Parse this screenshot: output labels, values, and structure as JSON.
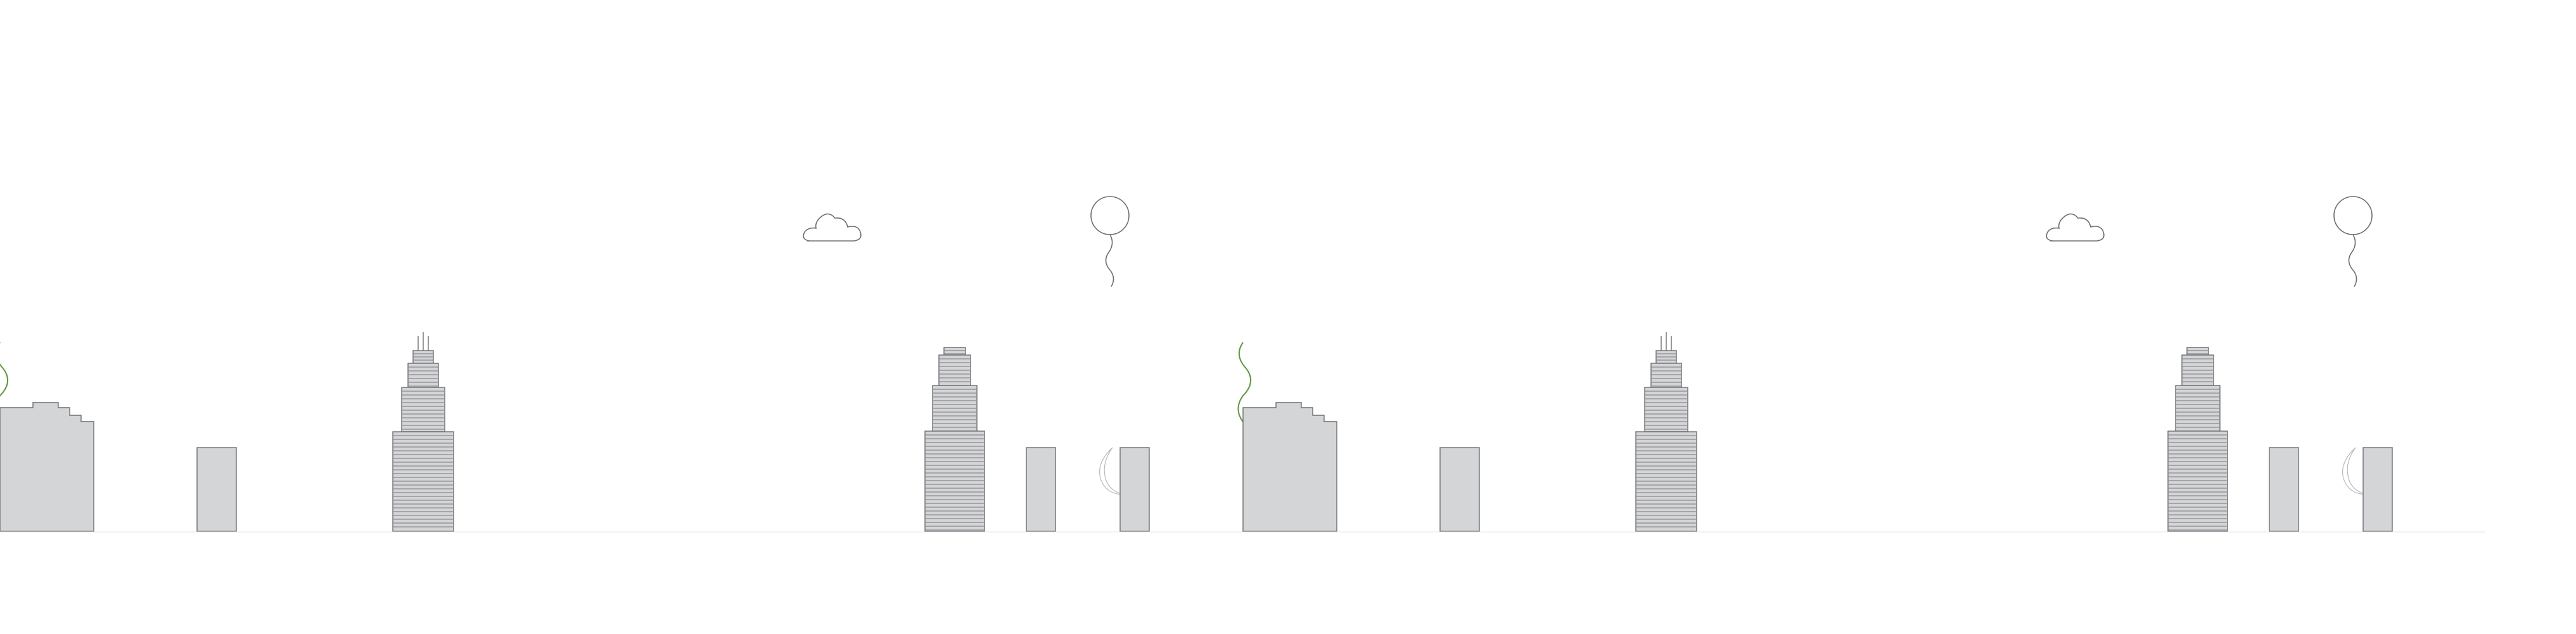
{
  "scene": {
    "name": "city-skyline-illustration",
    "repeat_count": 2,
    "elements": [
      "smoke-puff",
      "factory-building",
      "small-building",
      "antenna-skyscraper",
      "cloud",
      "stepped-skyscraper",
      "narrow-building",
      "balloon",
      "crescent-moon",
      "tall-building"
    ]
  },
  "colors": {
    "background": "#ffffff",
    "building_fill": "#d4d5d7",
    "outline": "#6d6e71",
    "floor_line": "#8a8b8e",
    "smoke_green": "#5e9a3a",
    "ground": "#8a8b8e"
  }
}
